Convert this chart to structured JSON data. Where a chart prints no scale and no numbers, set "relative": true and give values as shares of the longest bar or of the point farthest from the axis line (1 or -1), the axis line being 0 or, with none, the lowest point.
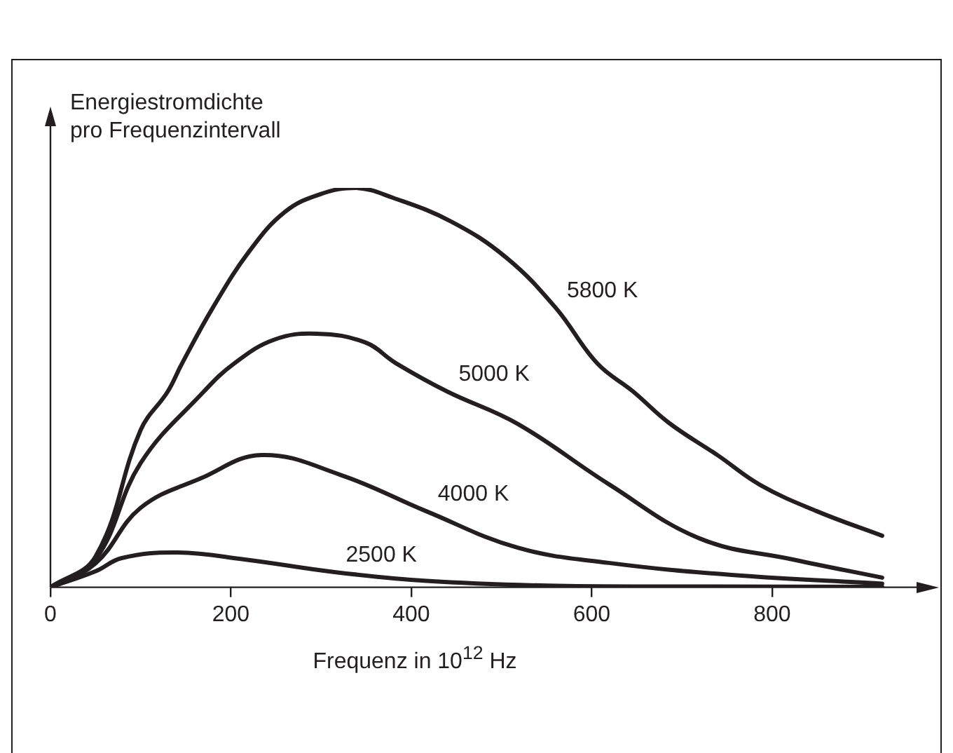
{
  "chart_data": {
    "type": "line",
    "relative": true,
    "ylabel": "Energiestromdichte pro Frequenzintervall",
    "xlabel": "Frequenz in 10$^{12}$ Hz",
    "xlim": [
      0,
      985
    ],
    "xticks": [
      0,
      200,
      400,
      600,
      800
    ],
    "series": [
      {
        "name": "5800 K",
        "color": "#231f20",
        "x": [
          0,
          50,
          100,
          130,
          146,
          180,
          220,
          260,
          300,
          339,
          380,
          444,
          505,
          560,
          606,
          646,
          686,
          740,
          787,
          850,
          922
        ],
        "values": [
          0,
          0.077,
          0.394,
          0.49,
          0.561,
          0.7,
          0.84,
          0.94,
          0.985,
          1,
          0.975,
          0.916,
          0.826,
          0.7,
          0.561,
          0.49,
          0.411,
          0.33,
          0.256,
          0.19,
          0.129
        ]
      },
      {
        "name": "5000 K",
        "color": "#231f20",
        "x": [
          0,
          50,
          100,
          170,
          204,
          248,
          295,
          349,
          383,
          440,
          518,
          619,
          720,
          822,
          922
        ],
        "values": [
          0,
          0.07,
          0.311,
          0.49,
          0.561,
          0.62,
          0.635,
          0.613,
          0.561,
          0.49,
          0.409,
          0.258,
          0.122,
          0.07,
          0.024
        ]
      },
      {
        "name": "4000 K",
        "color": "#231f20",
        "x": [
          0,
          50,
          100,
          167,
          234,
          322,
          417,
          518,
          619,
          755,
          922
        ],
        "values": [
          0,
          0.06,
          0.199,
          0.273,
          0.331,
          0.281,
          0.19,
          0.099,
          0.061,
          0.031,
          0.009
        ]
      },
      {
        "name": "2500 K",
        "color": "#231f20",
        "x": [
          0,
          50,
          79,
          140,
          214,
          315,
          417,
          552,
          700,
          922
        ],
        "values": [
          0,
          0.04,
          0.073,
          0.087,
          0.07,
          0.038,
          0.016,
          0.004,
          0.002,
          0.001
        ]
      }
    ]
  }
}
